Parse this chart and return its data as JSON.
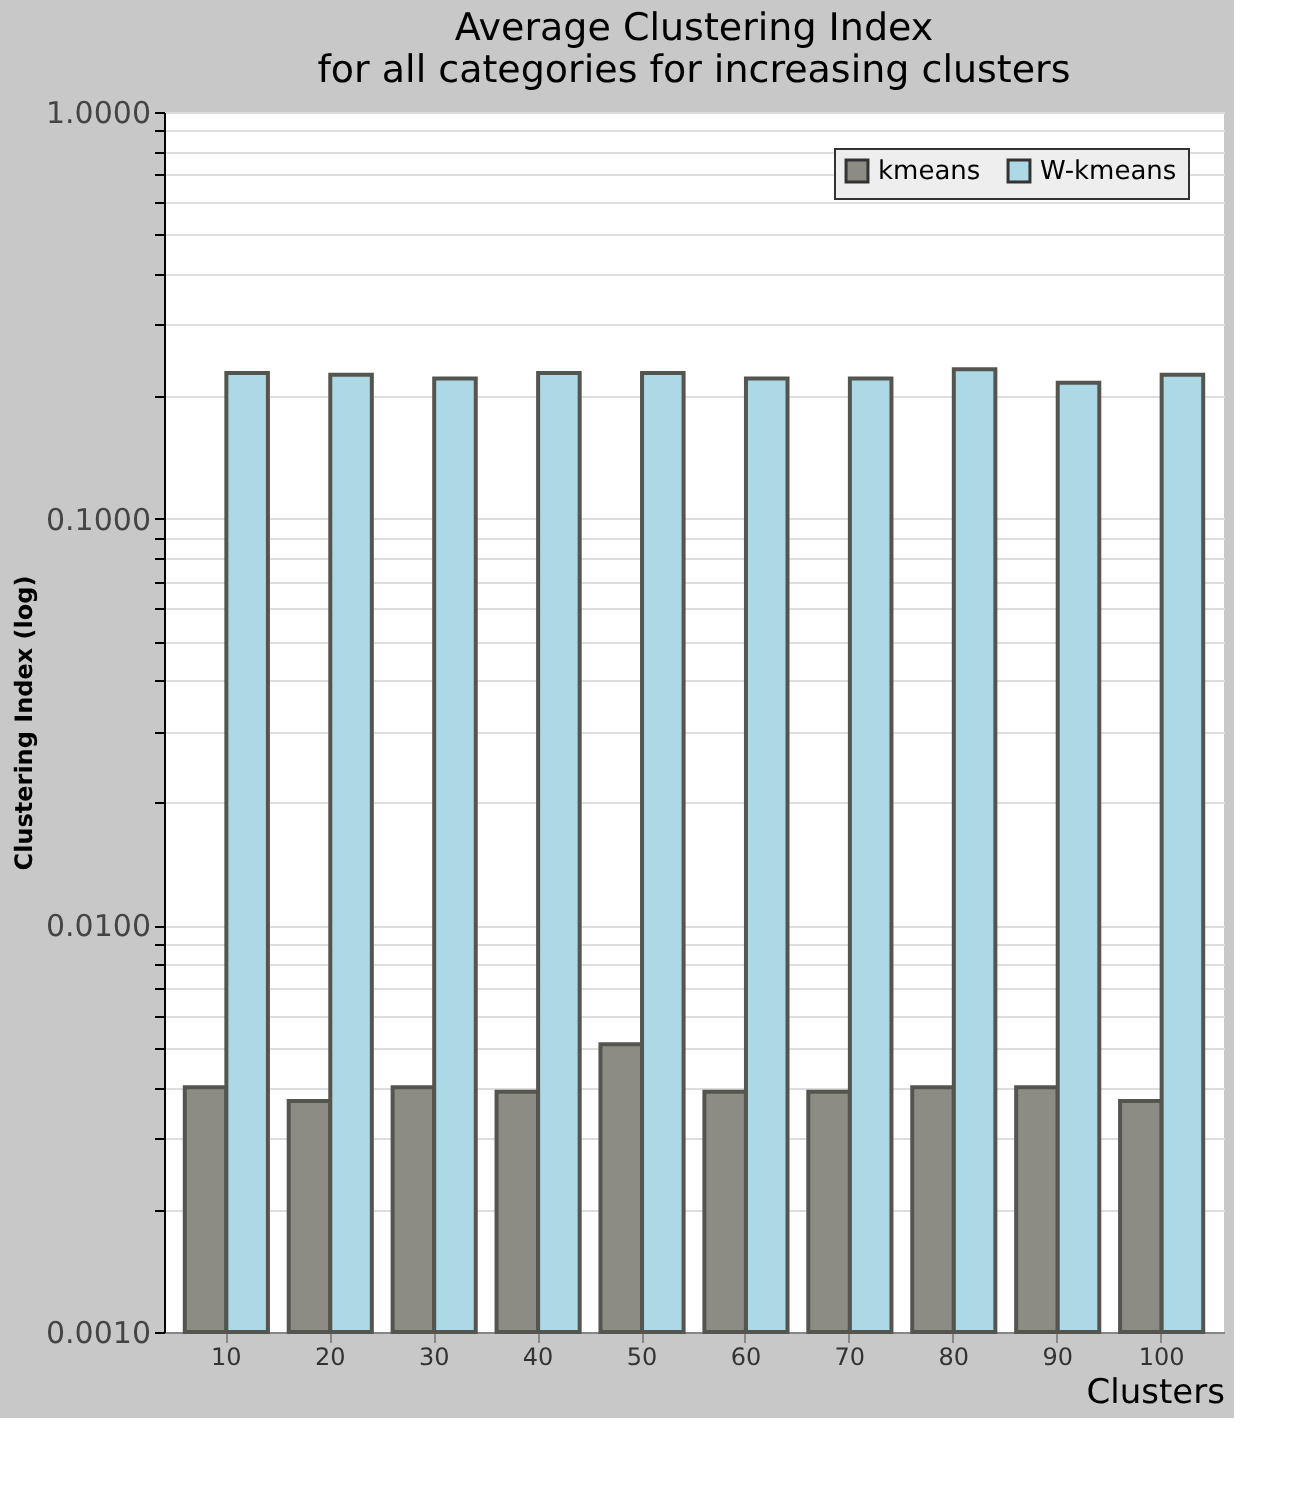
{
  "chart_data": {
    "type": "bar",
    "title": "Average Clustering Index\nfor all categories for increasing clusters",
    "xlabel": "Clusters",
    "ylabel": "Clustering Index (log)",
    "categories": [
      "10",
      "20",
      "30",
      "40",
      "50",
      "60",
      "70",
      "80",
      "90",
      "100"
    ],
    "series": [
      {
        "name": "kmeans",
        "color": "#8c8c84",
        "values": [
          0.004,
          0.0037,
          0.004,
          0.0039,
          0.0051,
          0.0039,
          0.0039,
          0.004,
          0.004,
          0.0037
        ]
      },
      {
        "name": "W-kmeans",
        "color": "#add8e6",
        "values": [
          0.228,
          0.226,
          0.221,
          0.228,
          0.228,
          0.221,
          0.221,
          0.233,
          0.216,
          0.226
        ]
      }
    ],
    "log": true,
    "ylim": [
      0.001,
      1
    ],
    "yticks": [
      {
        "value": 0.001,
        "label": "0.0010"
      },
      {
        "value": 0.002,
        "label": null
      },
      {
        "value": 0.003,
        "label": null
      },
      {
        "value": 0.004,
        "label": null
      },
      {
        "value": 0.005,
        "label": null
      },
      {
        "value": 0.006,
        "label": null
      },
      {
        "value": 0.007,
        "label": null
      },
      {
        "value": 0.008,
        "label": null
      },
      {
        "value": 0.009,
        "label": null
      },
      {
        "value": 0.01,
        "label": "0.0100"
      },
      {
        "value": 0.02,
        "label": null
      },
      {
        "value": 0.03,
        "label": null
      },
      {
        "value": 0.04,
        "label": null
      },
      {
        "value": 0.05,
        "label": null
      },
      {
        "value": 0.06,
        "label": null
      },
      {
        "value": 0.07,
        "label": null
      },
      {
        "value": 0.08,
        "label": null
      },
      {
        "value": 0.09,
        "label": null
      },
      {
        "value": 0.1,
        "label": "0.1000"
      },
      {
        "value": 0.2,
        "label": null
      },
      {
        "value": 0.3,
        "label": null
      },
      {
        "value": 0.4,
        "label": null
      },
      {
        "value": 0.5,
        "label": null
      },
      {
        "value": 0.6,
        "label": null
      },
      {
        "value": 0.7,
        "label": null
      },
      {
        "value": 0.8,
        "label": null
      },
      {
        "value": 0.9,
        "label": null
      },
      {
        "value": 1,
        "label": "1.0000"
      }
    ],
    "grid": "y",
    "legend": "top right"
  }
}
